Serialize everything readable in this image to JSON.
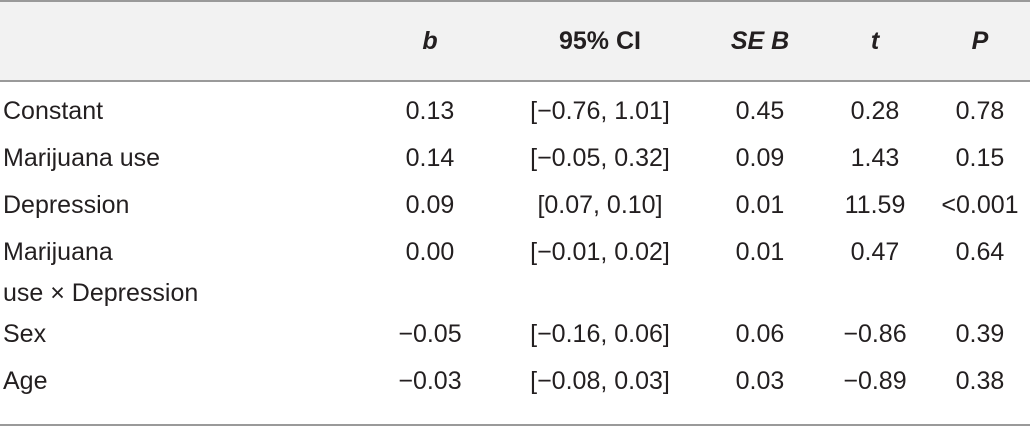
{
  "table": {
    "headers": [
      "",
      "b",
      "95% CI",
      "SE B",
      "t",
      "P"
    ],
    "rows": [
      {
        "label": "Constant",
        "b": "0.13",
        "ci": "[−0.76, 1.01]",
        "se": "0.45",
        "t": "0.28",
        "p": "0.78"
      },
      {
        "label": "Marijuana use",
        "b": "0.14",
        "ci": "[−0.05, 0.32]",
        "se": "0.09",
        "t": "1.43",
        "p": "0.15"
      },
      {
        "label": "Depression",
        "b": "0.09",
        "ci": "[0.07, 0.10]",
        "se": "0.01",
        "t": "11.59",
        "p": "<0.001"
      },
      {
        "label_line1": "Marijuana",
        "label_line2": "use × Depression",
        "b": "0.00",
        "ci": "[−0.01, 0.02]",
        "se": "0.01",
        "t": "0.47",
        "p": "0.64"
      },
      {
        "label": "Sex",
        "b": "−0.05",
        "ci": "[−0.16, 0.06]",
        "se": "0.06",
        "t": "−0.86",
        "p": "0.39"
      },
      {
        "label": "Age",
        "b": "−0.03",
        "ci": "[−0.08, 0.03]",
        "se": "0.03",
        "t": "−0.89",
        "p": "0.38"
      }
    ]
  }
}
